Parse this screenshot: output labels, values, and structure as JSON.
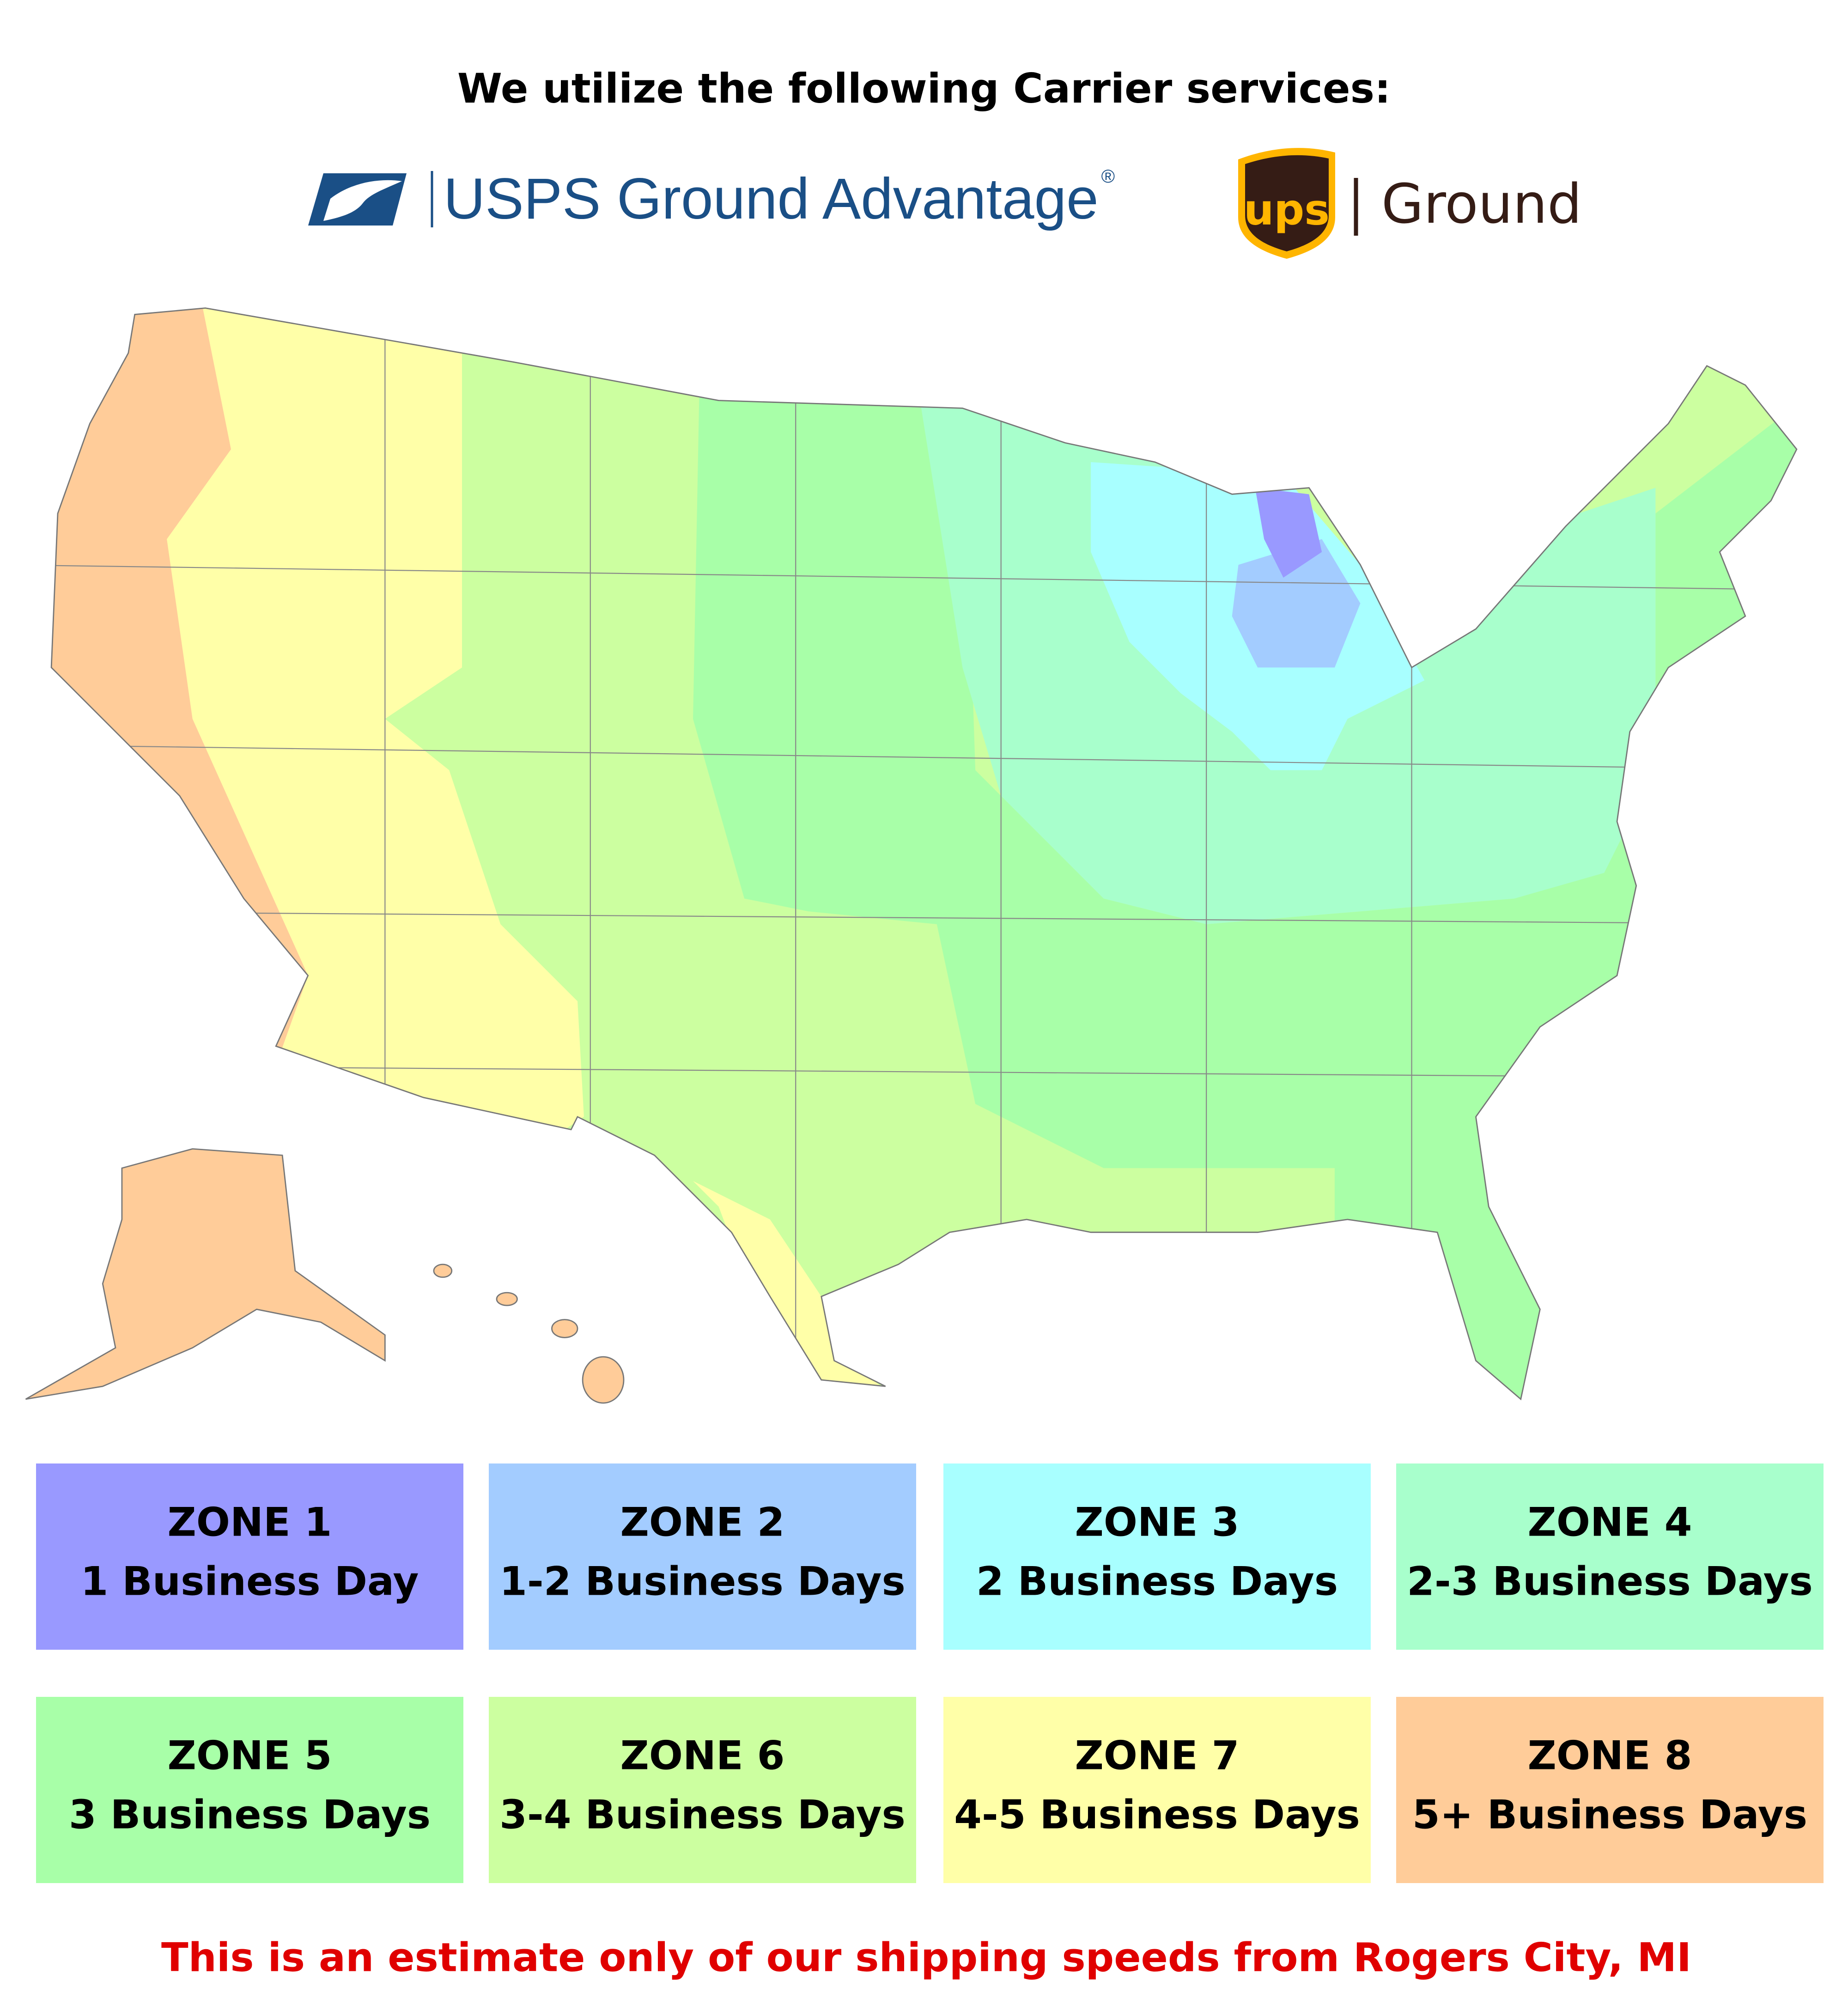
{
  "header": {
    "title": "We utilize the following Carrier services:"
  },
  "carriers": [
    {
      "name": "USPS Ground Advantage",
      "mark": "®"
    },
    {
      "logo": "ups",
      "name": "Ground"
    }
  ],
  "zones": [
    {
      "name": "ZONE 1",
      "days": "1 Business Day",
      "color": "#9999ff"
    },
    {
      "name": "ZONE 2",
      "days": "1-2 Business Days",
      "color": "#a3ccff"
    },
    {
      "name": "ZONE 3",
      "days": "2 Business Days",
      "color": "#a8ffff"
    },
    {
      "name": "ZONE 4",
      "days": "2-3 Business Days",
      "color": "#a8ffcc"
    },
    {
      "name": "ZONE 5",
      "days": "3 Business Days",
      "color": "#a8ffa8"
    },
    {
      "name": "ZONE 6",
      "days": "3-4 Business Days",
      "color": "#ccffa0"
    },
    {
      "name": "ZONE 7",
      "days": "4-5 Business Days",
      "color": "#ffffa8"
    },
    {
      "name": "ZONE 8",
      "days": "5+ Business Days",
      "color": "#ffcc99"
    }
  ],
  "footer": {
    "note": "This is an estimate only of our shipping speeds from Rogers City, MI"
  }
}
